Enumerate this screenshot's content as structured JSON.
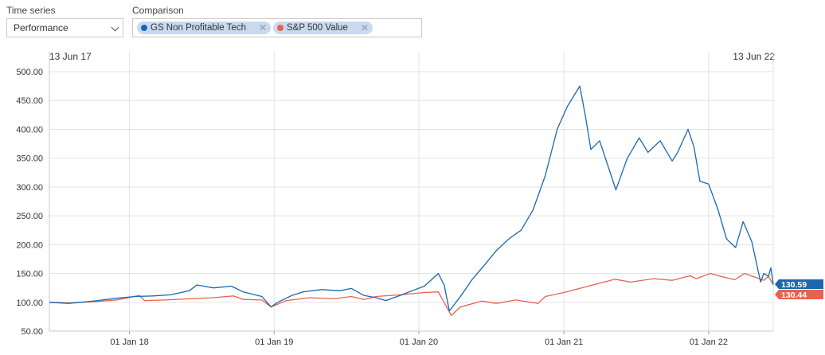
{
  "controls": {
    "time_series_label": "Time series",
    "time_series_value": "Performance",
    "comparison_label": "Comparison",
    "chips": [
      {
        "label": "GS Non Profitable Tech",
        "color": "#1565c0"
      },
      {
        "label": "S&P 500 Value",
        "color": "#e8624f"
      }
    ],
    "remove_icon": "close-icon"
  },
  "range": {
    "start_label": "13 Jun 17",
    "end_label": "13 Jun 22"
  },
  "chart_data": {
    "type": "line",
    "xlim": [
      "2017-06-13",
      "2022-06-13"
    ],
    "ylim": [
      50,
      500
    ],
    "y_ticks": [
      "50.00",
      "100.00",
      "150.00",
      "200.00",
      "250.00",
      "300.00",
      "350.00",
      "400.00",
      "450.00",
      "500.00"
    ],
    "x_ticks": [
      {
        "date": "2018-01-01",
        "label": "01 Jan 18"
      },
      {
        "date": "2019-01-01",
        "label": "01 Jan 19"
      },
      {
        "date": "2020-01-01",
        "label": "01 Jan 20"
      },
      {
        "date": "2021-01-01",
        "label": "01 Jan 21"
      },
      {
        "date": "2022-01-01",
        "label": "01 Jan 22"
      }
    ],
    "grid": true,
    "series": [
      {
        "name": "GS Non Profitable Tech",
        "color": "#1a68b0",
        "last_label": "130.59",
        "points": [
          [
            "2017-06-13",
            100
          ],
          [
            "2017-08-01",
            98
          ],
          [
            "2017-10-01",
            102
          ],
          [
            "2017-12-01",
            107
          ],
          [
            "2018-01-15",
            110
          ],
          [
            "2018-03-01",
            111
          ],
          [
            "2018-04-15",
            113
          ],
          [
            "2018-06-01",
            120
          ],
          [
            "2018-06-20",
            130
          ],
          [
            "2018-08-01",
            125
          ],
          [
            "2018-09-15",
            128
          ],
          [
            "2018-10-15",
            118
          ],
          [
            "2018-12-01",
            110
          ],
          [
            "2018-12-24",
            92
          ],
          [
            "2019-01-10",
            100
          ],
          [
            "2019-02-15",
            112
          ],
          [
            "2019-03-15",
            118
          ],
          [
            "2019-05-01",
            122
          ],
          [
            "2019-06-15",
            120
          ],
          [
            "2019-07-15",
            124
          ],
          [
            "2019-08-15",
            112
          ],
          [
            "2019-09-15",
            108
          ],
          [
            "2019-10-10",
            103
          ],
          [
            "2019-11-15",
            112
          ],
          [
            "2019-12-15",
            120
          ],
          [
            "2020-01-15",
            128
          ],
          [
            "2020-02-19",
            150
          ],
          [
            "2020-03-05",
            130
          ],
          [
            "2020-03-18",
            85
          ],
          [
            "2020-04-15",
            110
          ],
          [
            "2020-05-15",
            140
          ],
          [
            "2020-06-15",
            165
          ],
          [
            "2020-07-15",
            190
          ],
          [
            "2020-08-15",
            210
          ],
          [
            "2020-09-15",
            225
          ],
          [
            "2020-10-15",
            260
          ],
          [
            "2020-11-15",
            320
          ],
          [
            "2020-12-15",
            400
          ],
          [
            "2021-01-10",
            440
          ],
          [
            "2021-02-10",
            475
          ],
          [
            "2021-02-25",
            420
          ],
          [
            "2021-03-10",
            365
          ],
          [
            "2021-04-01",
            380
          ],
          [
            "2021-05-12",
            295
          ],
          [
            "2021-06-10",
            350
          ],
          [
            "2021-07-10",
            385
          ],
          [
            "2021-08-01",
            360
          ],
          [
            "2021-09-01",
            380
          ],
          [
            "2021-10-01",
            345
          ],
          [
            "2021-10-15",
            360
          ],
          [
            "2021-11-10",
            400
          ],
          [
            "2021-11-25",
            370
          ],
          [
            "2021-12-10",
            310
          ],
          [
            "2022-01-01",
            305
          ],
          [
            "2022-01-25",
            260
          ],
          [
            "2022-02-15",
            210
          ],
          [
            "2022-03-10",
            195
          ],
          [
            "2022-03-29",
            240
          ],
          [
            "2022-04-20",
            205
          ],
          [
            "2022-05-12",
            135
          ],
          [
            "2022-05-20",
            150
          ],
          [
            "2022-06-01",
            145
          ],
          [
            "2022-06-07",
            160
          ],
          [
            "2022-06-13",
            130.59
          ]
        ]
      },
      {
        "name": "S&P 500 Value",
        "color": "#e8624f",
        "last_label": "130.44",
        "points": [
          [
            "2017-06-13",
            100
          ],
          [
            "2017-08-01",
            99
          ],
          [
            "2017-10-01",
            101
          ],
          [
            "2017-12-01",
            104
          ],
          [
            "2018-01-26",
            112
          ],
          [
            "2018-02-08",
            103
          ],
          [
            "2018-04-01",
            104
          ],
          [
            "2018-06-01",
            106
          ],
          [
            "2018-08-01",
            108
          ],
          [
            "2018-09-20",
            111
          ],
          [
            "2018-10-15",
            105
          ],
          [
            "2018-12-01",
            104
          ],
          [
            "2018-12-24",
            92
          ],
          [
            "2019-02-01",
            103
          ],
          [
            "2019-04-01",
            108
          ],
          [
            "2019-06-01",
            106
          ],
          [
            "2019-07-15",
            110
          ],
          [
            "2019-08-15",
            105
          ],
          [
            "2019-09-15",
            110
          ],
          [
            "2019-11-15",
            113
          ],
          [
            "2020-01-15",
            117
          ],
          [
            "2020-02-19",
            118
          ],
          [
            "2020-03-23",
            77
          ],
          [
            "2020-04-15",
            92
          ],
          [
            "2020-06-08",
            102
          ],
          [
            "2020-07-15",
            98
          ],
          [
            "2020-09-01",
            104
          ],
          [
            "2020-10-28",
            98
          ],
          [
            "2020-11-15",
            110
          ],
          [
            "2021-01-01",
            117
          ],
          [
            "2021-03-15",
            130
          ],
          [
            "2021-05-10",
            140
          ],
          [
            "2021-06-18",
            135
          ],
          [
            "2021-08-15",
            141
          ],
          [
            "2021-10-01",
            138
          ],
          [
            "2021-11-15",
            146
          ],
          [
            "2021-12-01",
            141
          ],
          [
            "2022-01-05",
            150
          ],
          [
            "2022-02-01",
            145
          ],
          [
            "2022-03-08",
            139
          ],
          [
            "2022-04-01",
            150
          ],
          [
            "2022-05-01",
            143
          ],
          [
            "2022-05-20",
            138
          ],
          [
            "2022-06-01",
            145
          ],
          [
            "2022-06-13",
            130.44
          ]
        ]
      }
    ]
  }
}
